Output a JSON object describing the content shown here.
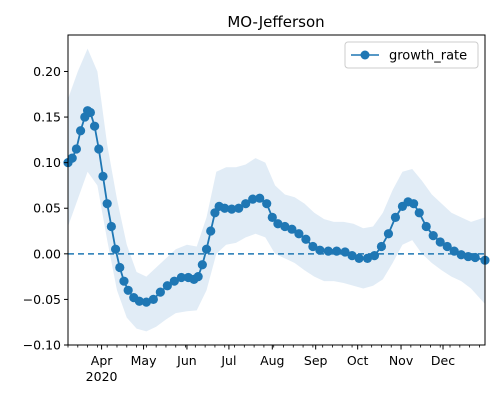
{
  "chart_data": {
    "type": "line",
    "title": "MO-Jefferson",
    "xlabel": "",
    "ylabel": "",
    "x_type": "date",
    "xlim": [
      "2020-03-08",
      "2020-12-31"
    ],
    "ylim": [
      -0.1,
      0.24
    ],
    "yticks": [
      -0.1,
      -0.05,
      0.0,
      0.05,
      0.1,
      0.15,
      0.2
    ],
    "ytick_labels": [
      "−0.10",
      "−0.05",
      "0.00",
      "0.05",
      "0.10",
      "0.15",
      "0.20"
    ],
    "xticks": [
      {
        "date": "2020-04-01",
        "label": "Apr",
        "sublabel": "2020"
      },
      {
        "date": "2020-05-01",
        "label": "May",
        "sublabel": ""
      },
      {
        "date": "2020-06-01",
        "label": "Jun",
        "sublabel": ""
      },
      {
        "date": "2020-07-01",
        "label": "Jul",
        "sublabel": ""
      },
      {
        "date": "2020-08-01",
        "label": "Aug",
        "sublabel": ""
      },
      {
        "date": "2020-09-01",
        "label": "Sep",
        "sublabel": ""
      },
      {
        "date": "2020-10-01",
        "label": "Oct",
        "sublabel": ""
      },
      {
        "date": "2020-11-01",
        "label": "Nov",
        "sublabel": ""
      },
      {
        "date": "2020-12-01",
        "label": "Dec",
        "sublabel": ""
      }
    ],
    "grid": false,
    "legend": {
      "position": "top-right",
      "entries": [
        "growth_rate"
      ]
    },
    "reference_line": {
      "y": 0.0,
      "style": "dashed"
    },
    "colors": {
      "line": "#1f77b4",
      "band": "#dce9f5",
      "reference": "#1f77b4"
    },
    "series": [
      {
        "name": "growth_rate",
        "marker": "circle",
        "points": [
          [
            "2020-03-08",
            0.1
          ],
          [
            "2020-03-11",
            0.105
          ],
          [
            "2020-03-14",
            0.115
          ],
          [
            "2020-03-17",
            0.135
          ],
          [
            "2020-03-20",
            0.15
          ],
          [
            "2020-03-22",
            0.157
          ],
          [
            "2020-03-24",
            0.155
          ],
          [
            "2020-03-27",
            0.14
          ],
          [
            "2020-03-30",
            0.115
          ],
          [
            "2020-04-02",
            0.085
          ],
          [
            "2020-04-05",
            0.055
          ],
          [
            "2020-04-08",
            0.03
          ],
          [
            "2020-04-11",
            0.005
          ],
          [
            "2020-04-14",
            -0.015
          ],
          [
            "2020-04-17",
            -0.03
          ],
          [
            "2020-04-20",
            -0.04
          ],
          [
            "2020-04-24",
            -0.048
          ],
          [
            "2020-04-28",
            -0.052
          ],
          [
            "2020-05-03",
            -0.053
          ],
          [
            "2020-05-08",
            -0.05
          ],
          [
            "2020-05-13",
            -0.042
          ],
          [
            "2020-05-18",
            -0.035
          ],
          [
            "2020-05-23",
            -0.03
          ],
          [
            "2020-05-28",
            -0.026
          ],
          [
            "2020-06-02",
            -0.026
          ],
          [
            "2020-06-06",
            -0.028
          ],
          [
            "2020-06-09",
            -0.025
          ],
          [
            "2020-06-12",
            -0.012
          ],
          [
            "2020-06-15",
            0.005
          ],
          [
            "2020-06-18",
            0.025
          ],
          [
            "2020-06-21",
            0.045
          ],
          [
            "2020-06-24",
            0.052
          ],
          [
            "2020-06-28",
            0.05
          ],
          [
            "2020-07-03",
            0.049
          ],
          [
            "2020-07-08",
            0.05
          ],
          [
            "2020-07-13",
            0.055
          ],
          [
            "2020-07-18",
            0.06
          ],
          [
            "2020-07-23",
            0.061
          ],
          [
            "2020-07-28",
            0.055
          ],
          [
            "2020-08-01",
            0.04
          ],
          [
            "2020-08-05",
            0.033
          ],
          [
            "2020-08-10",
            0.03
          ],
          [
            "2020-08-15",
            0.027
          ],
          [
            "2020-08-20",
            0.022
          ],
          [
            "2020-08-25",
            0.016
          ],
          [
            "2020-08-30",
            0.008
          ],
          [
            "2020-09-04",
            0.004
          ],
          [
            "2020-09-10",
            0.003
          ],
          [
            "2020-09-16",
            0.003
          ],
          [
            "2020-09-22",
            0.002
          ],
          [
            "2020-09-27",
            -0.002
          ],
          [
            "2020-10-02",
            -0.005
          ],
          [
            "2020-10-08",
            -0.005
          ],
          [
            "2020-10-13",
            -0.002
          ],
          [
            "2020-10-18",
            0.008
          ],
          [
            "2020-10-23",
            0.022
          ],
          [
            "2020-10-28",
            0.04
          ],
          [
            "2020-11-02",
            0.052
          ],
          [
            "2020-11-06",
            0.057
          ],
          [
            "2020-11-10",
            0.055
          ],
          [
            "2020-11-14",
            0.045
          ],
          [
            "2020-11-19",
            0.03
          ],
          [
            "2020-11-24",
            0.02
          ],
          [
            "2020-11-29",
            0.013
          ],
          [
            "2020-12-04",
            0.008
          ],
          [
            "2020-12-09",
            0.003
          ],
          [
            "2020-12-14",
            -0.001
          ],
          [
            "2020-12-19",
            -0.003
          ],
          [
            "2020-12-24",
            -0.004
          ],
          [
            "2020-12-31",
            -0.007
          ]
        ]
      }
    ],
    "uncertainty_band": [
      [
        "2020-03-08",
        0.03,
        0.17
      ],
      [
        "2020-03-15",
        0.06,
        0.2
      ],
      [
        "2020-03-22",
        0.09,
        0.225
      ],
      [
        "2020-03-29",
        0.075,
        0.2
      ],
      [
        "2020-04-05",
        0.015,
        0.12
      ],
      [
        "2020-04-12",
        -0.04,
        0.06
      ],
      [
        "2020-04-19",
        -0.07,
        0.01
      ],
      [
        "2020-04-26",
        -0.082,
        -0.02
      ],
      [
        "2020-05-03",
        -0.085,
        -0.025
      ],
      [
        "2020-05-10",
        -0.08,
        -0.015
      ],
      [
        "2020-05-17",
        -0.072,
        -0.005
      ],
      [
        "2020-05-24",
        -0.065,
        0.005
      ],
      [
        "2020-06-01",
        -0.063,
        0.01
      ],
      [
        "2020-06-08",
        -0.062,
        0.008
      ],
      [
        "2020-06-15",
        -0.04,
        0.04
      ],
      [
        "2020-06-22",
        0.0,
        0.09
      ],
      [
        "2020-06-29",
        0.01,
        0.095
      ],
      [
        "2020-07-06",
        0.012,
        0.095
      ],
      [
        "2020-07-13",
        0.018,
        0.098
      ],
      [
        "2020-07-20",
        0.022,
        0.105
      ],
      [
        "2020-07-27",
        0.018,
        0.1
      ],
      [
        "2020-08-03",
        0.0,
        0.075
      ],
      [
        "2020-08-10",
        -0.005,
        0.065
      ],
      [
        "2020-08-17",
        -0.01,
        0.062
      ],
      [
        "2020-08-24",
        -0.018,
        0.055
      ],
      [
        "2020-08-31",
        -0.025,
        0.045
      ],
      [
        "2020-09-07",
        -0.03,
        0.038
      ],
      [
        "2020-09-14",
        -0.03,
        0.035
      ],
      [
        "2020-09-21",
        -0.032,
        0.035
      ],
      [
        "2020-09-28",
        -0.035,
        0.033
      ],
      [
        "2020-10-05",
        -0.038,
        0.028
      ],
      [
        "2020-10-12",
        -0.035,
        0.03
      ],
      [
        "2020-10-19",
        -0.028,
        0.045
      ],
      [
        "2020-10-26",
        -0.01,
        0.07
      ],
      [
        "2020-11-02",
        0.01,
        0.09
      ],
      [
        "2020-11-09",
        0.015,
        0.093
      ],
      [
        "2020-11-16",
        0.0,
        0.08
      ],
      [
        "2020-11-23",
        -0.01,
        0.065
      ],
      [
        "2020-11-30",
        -0.018,
        0.055
      ],
      [
        "2020-12-07",
        -0.025,
        0.045
      ],
      [
        "2020-12-14",
        -0.03,
        0.04
      ],
      [
        "2020-12-21",
        -0.038,
        0.035
      ],
      [
        "2020-12-31",
        -0.055,
        0.04
      ]
    ]
  }
}
